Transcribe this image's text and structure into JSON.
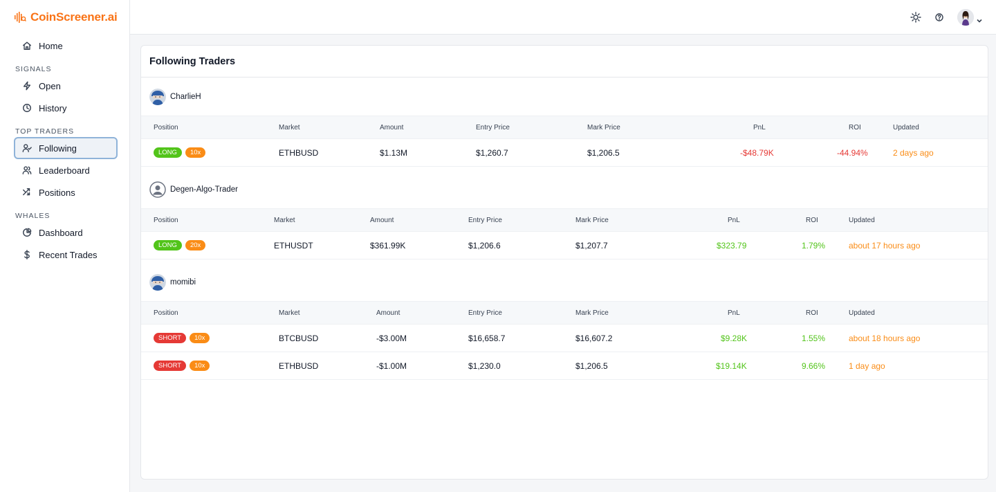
{
  "app": {
    "name": "CoinScreener.ai",
    "brand_color": "#f97316"
  },
  "sidebar": {
    "home": "Home",
    "sections": [
      {
        "label": "SIGNALS",
        "items": [
          {
            "label": "Open",
            "icon": "bolt-icon"
          },
          {
            "label": "History",
            "icon": "clock-icon"
          }
        ]
      },
      {
        "label": "TOP TRADERS",
        "items": [
          {
            "label": "Following",
            "icon": "user-check-icon",
            "active": true
          },
          {
            "label": "Leaderboard",
            "icon": "users-icon"
          },
          {
            "label": "Positions",
            "icon": "shuffle-icon"
          }
        ]
      },
      {
        "label": "WHALES",
        "items": [
          {
            "label": "Dashboard",
            "icon": "pie-chart-icon"
          },
          {
            "label": "Recent Trades",
            "icon": "dollar-icon"
          }
        ]
      }
    ]
  },
  "header": {
    "icons": [
      "sun-icon",
      "help-icon",
      "avatar",
      "chevron-down-icon"
    ]
  },
  "main": {
    "title": "Following Traders",
    "columns": [
      "Position",
      "Market",
      "Amount",
      "Entry Price",
      "Mark Price",
      "PnL",
      "ROI",
      "Updated"
    ],
    "traders": [
      {
        "name": "CharlieH",
        "positions": [
          {
            "side": "LONG",
            "leverage": "10x",
            "market": "ETHBUSD",
            "amount": "$1.13M",
            "entry": "$1,260.7",
            "mark": "$1,206.5",
            "pnl": "-$48.79K",
            "roi": "-44.94%",
            "updated": "2 days ago"
          }
        ]
      },
      {
        "name": "Degen-Algo-Trader",
        "positions": [
          {
            "side": "LONG",
            "leverage": "20x",
            "market": "ETHUSDT",
            "amount": "$361.99K",
            "entry": "$1,206.6",
            "mark": "$1,207.7",
            "pnl": "$323.79",
            "roi": "1.79%",
            "updated": "about 17 hours ago"
          }
        ]
      },
      {
        "name": "momibi",
        "positions": [
          {
            "side": "SHORT",
            "leverage": "10x",
            "market": "BTCBUSD",
            "amount": "-$3.00M",
            "entry": "$16,658.7",
            "mark": "$16,607.2",
            "pnl": "$9.28K",
            "roi": "1.55%",
            "updated": "about 18 hours ago"
          },
          {
            "side": "SHORT",
            "leverage": "10x",
            "market": "ETHBUSD",
            "amount": "-$1.00M",
            "entry": "$1,230.0",
            "mark": "$1,206.5",
            "pnl": "$19.14K",
            "roi": "9.66%",
            "updated": "1 day ago"
          }
        ]
      }
    ]
  },
  "colors": {
    "long": "#52c41a",
    "short": "#e53935",
    "leverage": "#fa8c16",
    "negative": "#e53935",
    "positive": "#52c41a",
    "updated": "#fa8c16"
  }
}
